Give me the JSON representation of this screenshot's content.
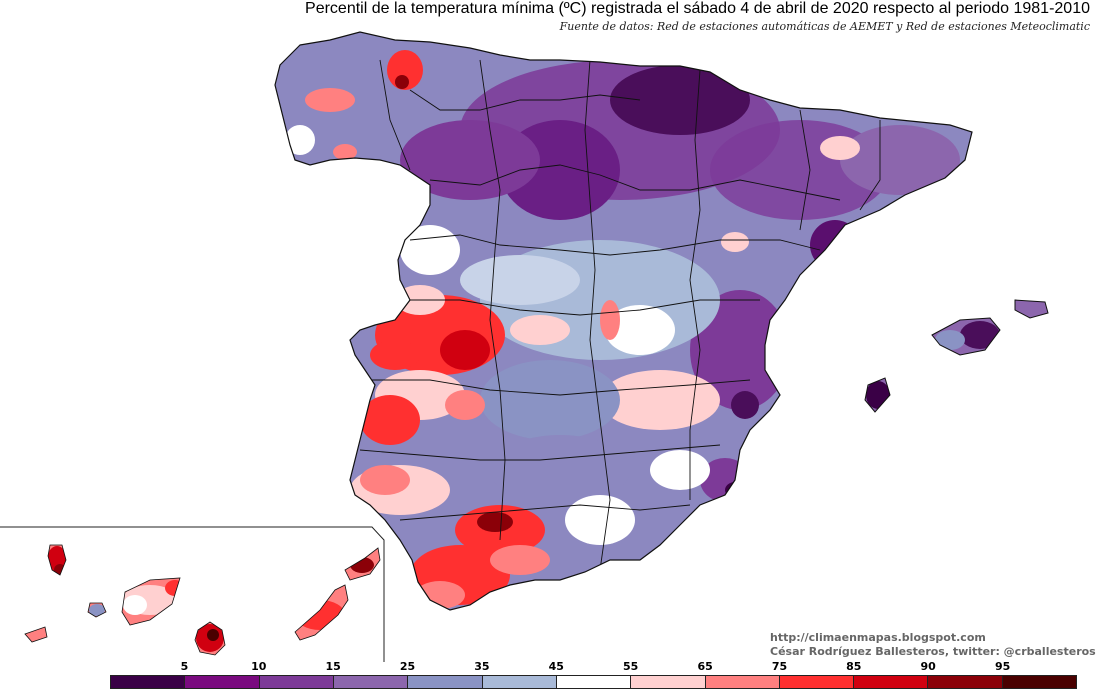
{
  "title": "Percentil de la temperatura mínima (ºC) registrada el sábado 4 de abril de 2020 respecto al periodo 1981-2010",
  "subtitle": "Fuente de datos: Red de estaciones automáticas de AEMET y Red de estaciones Meteoclimatic",
  "credits": {
    "url": "http://climaenmapas.blogspot.com",
    "author": "César Rodríguez Ballesteros, twitter: @crballesteros"
  },
  "legend": {
    "labels": [
      "5",
      "10",
      "15",
      "25",
      "35",
      "45",
      "55",
      "65",
      "75",
      "85",
      "90",
      "95"
    ],
    "colors": [
      "#3a0046",
      "#7a0a7f",
      "#7d3a98",
      "#8c66ad",
      "#8a93c4",
      "#a9bad8",
      "#ffffff",
      "#ffd0d0",
      "#ff8080",
      "#ff3030",
      "#d00010",
      "#8b0008",
      "#4a0000"
    ]
  },
  "regions": {
    "peninsula": "Península Ibérica",
    "balearics": "Islas Baleares",
    "canaries": "Islas Canarias"
  }
}
